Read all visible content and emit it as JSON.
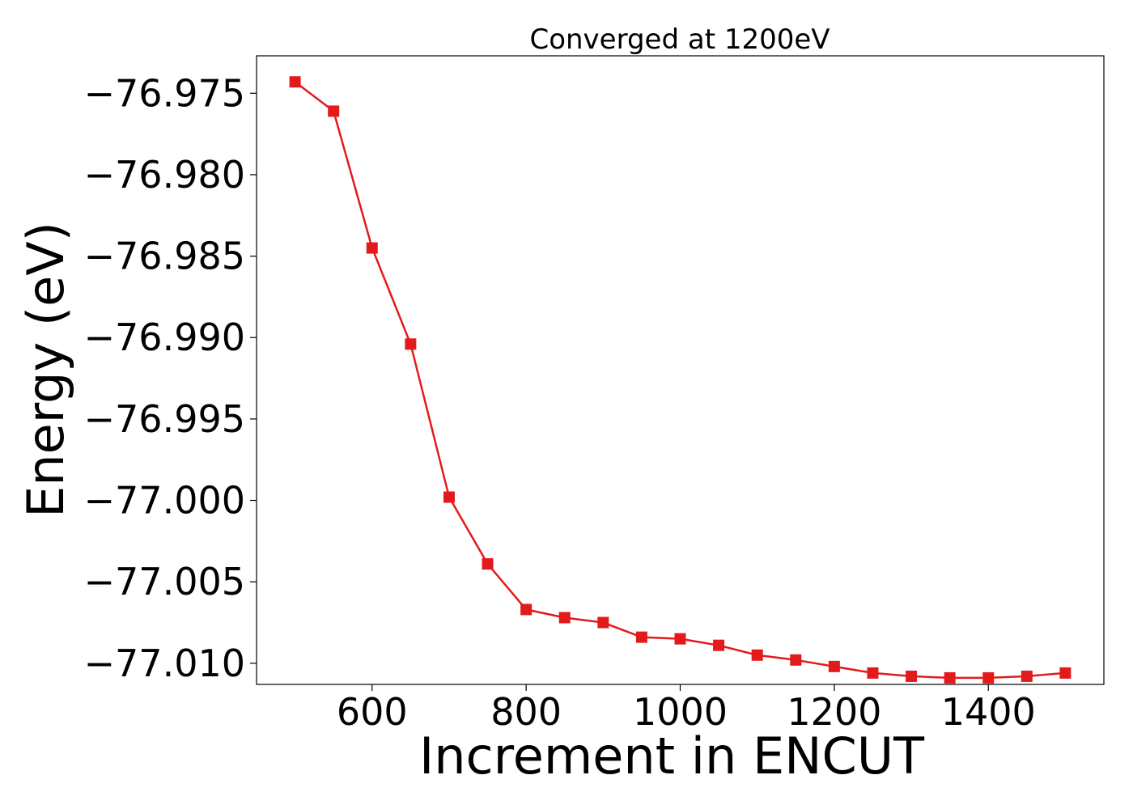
{
  "chart_data": {
    "type": "line",
    "title": "Converged at 1200eV",
    "xlabel": "Increment in ENCUT",
    "ylabel": "Energy (eV)",
    "xlim": [
      450,
      1550
    ],
    "ylim": [
      -77.0113,
      -76.9727
    ],
    "xticks": [
      600,
      800,
      1000,
      1200,
      1400
    ],
    "xtick_labels": [
      "600",
      "800",
      "1000",
      "1200",
      "1400"
    ],
    "yticks": [
      -76.975,
      -76.98,
      -76.985,
      -76.99,
      -76.995,
      -77.0,
      -77.005,
      -77.01
    ],
    "ytick_labels": [
      "−76.975",
      "−76.980",
      "−76.985",
      "−76.990",
      "−76.995",
      "−77.000",
      "−77.005",
      "−77.010"
    ],
    "grid": false,
    "marker": "square",
    "color": "#e31a1c",
    "x": [
      500,
      550,
      600,
      650,
      700,
      750,
      800,
      850,
      900,
      950,
      1000,
      1050,
      1100,
      1150,
      1200,
      1250,
      1300,
      1350,
      1400,
      1450,
      1500
    ],
    "y": [
      -76.9743,
      -76.9761,
      -76.9845,
      -76.9904,
      -76.9998,
      -77.0039,
      -77.0067,
      -77.0072,
      -77.0075,
      -77.0084,
      -77.0085,
      -77.0089,
      -77.0095,
      -77.0098,
      -77.0102,
      -77.0106,
      -77.0108,
      -77.0109,
      -77.0109,
      -77.0108,
      -77.0106
    ]
  }
}
